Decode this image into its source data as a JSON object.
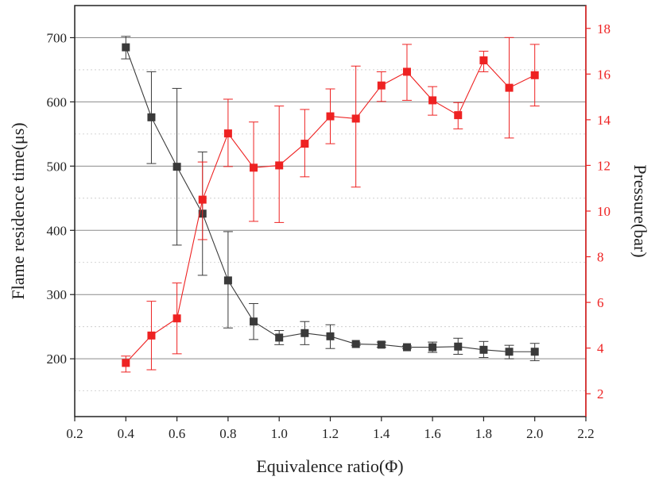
{
  "chart_data": {
    "type": "scatter",
    "xlabel": "Equivalence ratio(Φ)",
    "ylabel_left": "Flame residence time(μs)",
    "ylabel_right": "Pressure(bar)",
    "xlim": [
      0.2,
      2.2
    ],
    "ylim_left": [
      110,
      750
    ],
    "ylim_right": [
      1,
      19
    ],
    "x_ticks": [
      "0.2",
      "0.4",
      "0.6",
      "0.8",
      "1.0",
      "1.2",
      "1.4",
      "1.6",
      "1.8",
      "2.0",
      "2.2"
    ],
    "y_ticks_left": [
      "200",
      "300",
      "400",
      "500",
      "600",
      "700"
    ],
    "y_ticks_right": [
      "2",
      "4",
      "6",
      "8",
      "10",
      "12",
      "14",
      "16",
      "18"
    ],
    "grid": "horizontal",
    "series": [
      {
        "axis": "left",
        "color": "#3a3a3a",
        "x": [
          0.4,
          0.5,
          0.6,
          0.7,
          0.8,
          0.9,
          1.0,
          1.1,
          1.2,
          1.3,
          1.4,
          1.5,
          1.6,
          1.7,
          1.8,
          1.9,
          2.0
        ],
        "y": [
          685,
          576,
          499,
          426,
          322,
          258,
          233,
          240,
          235,
          223,
          222,
          218,
          218,
          219,
          214,
          211,
          211
        ],
        "err_low": [
          667,
          504,
          377,
          330,
          248,
          230,
          222,
          222,
          216,
          221,
          218,
          216,
          210,
          207,
          202,
          200,
          197
        ],
        "err_high": [
          702,
          647,
          621,
          522,
          398,
          286,
          244,
          258,
          253,
          225,
          226,
          220,
          226,
          232,
          227,
          221,
          224
        ]
      },
      {
        "axis": "right",
        "color": "#ee2222",
        "x": [
          0.4,
          0.5,
          0.6,
          0.7,
          0.8,
          0.9,
          1.0,
          1.1,
          1.2,
          1.3,
          1.4,
          1.5,
          1.6,
          1.7,
          1.8,
          1.9,
          2.0
        ],
        "y": [
          3.35,
          4.55,
          5.3,
          10.5,
          13.4,
          11.9,
          12.0,
          12.95,
          14.15,
          14.05,
          15.5,
          16.1,
          14.85,
          14.2,
          16.6,
          15.4,
          15.95
        ],
        "err_low": [
          2.95,
          3.05,
          3.75,
          8.75,
          11.95,
          9.55,
          9.5,
          11.5,
          12.95,
          11.05,
          14.8,
          14.85,
          14.2,
          13.6,
          16.1,
          13.2,
          14.6
        ],
        "err_high": [
          3.65,
          6.05,
          6.85,
          12.15,
          14.9,
          13.9,
          14.6,
          14.45,
          15.35,
          16.35,
          16.1,
          17.3,
          15.45,
          14.75,
          17.0,
          17.6,
          17.3
        ]
      }
    ]
  }
}
